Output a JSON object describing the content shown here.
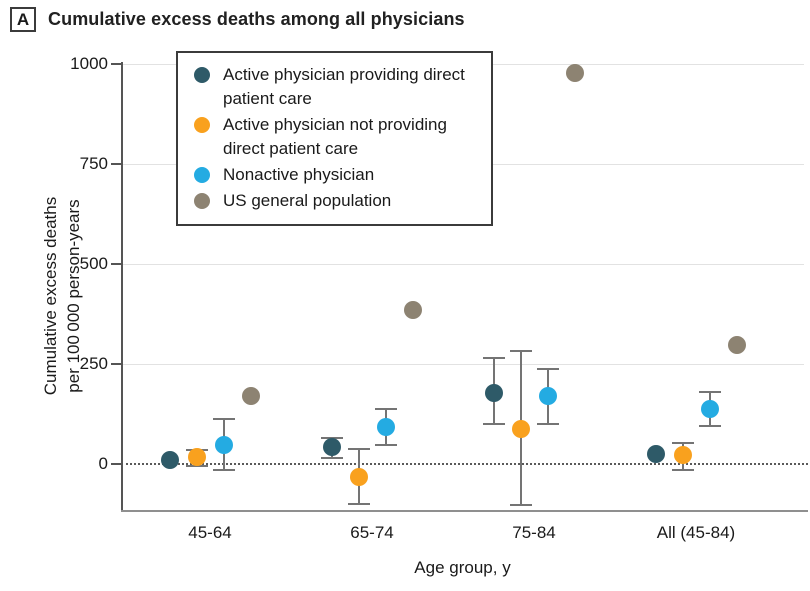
{
  "panel": {
    "marker": "A",
    "title": "Cumulative excess deaths among all physicians"
  },
  "chart_data": {
    "type": "scatter",
    "title": "Cumulative excess deaths among all physicians",
    "xlabel": "Age group, y",
    "ylabel": "Cumulative excess deaths per 100 000 person-years",
    "ylabel_lines": [
      "Cumulative excess deaths",
      "per 100 000 person-years"
    ],
    "categories": [
      "45-64",
      "65-74",
      "75-84",
      "All (45-84)"
    ],
    "y_ticks": [
      0,
      250,
      500,
      750,
      1000
    ],
    "ylim": [
      -117,
      1010
    ],
    "grid": "horizontal-light",
    "zero_line_style": "dotted",
    "legend_position": "inside-top-left",
    "series": [
      {
        "name": "Active physician providing direct patient care",
        "color": "#2E5A68",
        "points": [
          {
            "category": "45-64",
            "value": 10,
            "ci": null
          },
          {
            "category": "65-74",
            "value": 42,
            "ci": [
              15,
              65
            ]
          },
          {
            "category": "75-84",
            "value": 178,
            "ci": [
              100,
              265
            ]
          },
          {
            "category": "All (45-84)",
            "value": 25,
            "ci": null
          }
        ]
      },
      {
        "name": "Active physician not providing direct patient care",
        "color": "#F9A11E",
        "points": [
          {
            "category": "45-64",
            "value": 18,
            "ci": [
              -5,
              35
            ]
          },
          {
            "category": "65-74",
            "value": -32,
            "ci": [
              -100,
              38
            ]
          },
          {
            "category": "75-84",
            "value": 88,
            "ci": [
              -102,
              282
            ]
          },
          {
            "category": "All (45-84)",
            "value": 22,
            "ci": [
              -16,
              52
            ]
          }
        ]
      },
      {
        "name": "Nonactive physician",
        "color": "#24ABE2",
        "points": [
          {
            "category": "45-64",
            "value": 48,
            "ci": [
              -15,
              112
            ]
          },
          {
            "category": "65-74",
            "value": 92,
            "ci": [
              48,
              137
            ]
          },
          {
            "category": "75-84",
            "value": 170,
            "ci": [
              100,
              238
            ]
          },
          {
            "category": "All (45-84)",
            "value": 138,
            "ci": [
              96,
              180
            ]
          }
        ]
      },
      {
        "name": "US general population",
        "color": "#8D8372",
        "points": [
          {
            "category": "45-64",
            "value": 170,
            "ci": null
          },
          {
            "category": "65-74",
            "value": 385,
            "ci": null
          },
          {
            "category": "75-84",
            "value": 978,
            "ci": null
          },
          {
            "category": "All (45-84)",
            "value": 297,
            "ci": null
          }
        ]
      }
    ]
  }
}
